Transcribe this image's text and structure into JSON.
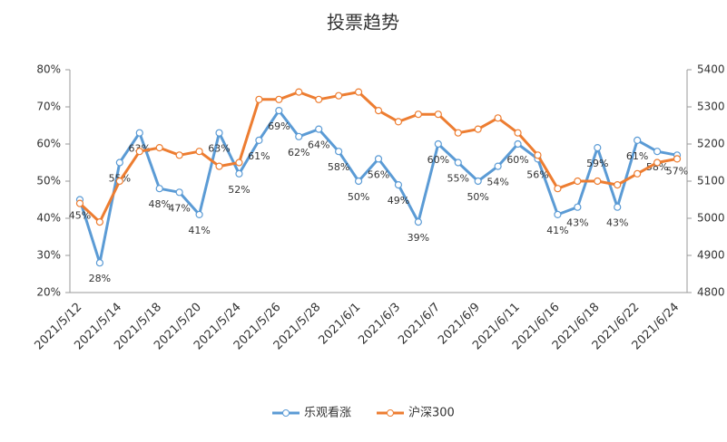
{
  "chart_data": {
    "type": "line",
    "title": "投票趋势",
    "categories": [
      "2021/5/12",
      null,
      "2021/5/14",
      null,
      "2021/5/18",
      null,
      "2021/5/20",
      null,
      "2021/5/24",
      null,
      "2021/5/26",
      null,
      "2021/5/28",
      null,
      "2021/6/1",
      null,
      "2021/6/3",
      null,
      "2021/6/7",
      null,
      "2021/6/9",
      null,
      "2021/6/11",
      null,
      "2021/6/16",
      null,
      "2021/6/18",
      null,
      "2021/6/22",
      null,
      "2021/6/24"
    ],
    "series": [
      {
        "name": "乐观看涨",
        "color": "#5b9bd5",
        "values": [
          45,
          28,
          55,
          63,
          48,
          47,
          41,
          63,
          52,
          61,
          69,
          62,
          64,
          58,
          50,
          56,
          49,
          39,
          60,
          55,
          50,
          54,
          60,
          56,
          41,
          43,
          59,
          43,
          61,
          58,
          57
        ],
        "value_labels": [
          "45%",
          "28%",
          "55%",
          "63%",
          "48%",
          "47%",
          "41%",
          "63%",
          "52%",
          "61%",
          "69%",
          "62%",
          "64%",
          "58%",
          "50%",
          "56%",
          "49%",
          "39%",
          "60%",
          "55%",
          "50%",
          "54%",
          "60%",
          "56%",
          "41%",
          "43%",
          "59%",
          "43%",
          "61%",
          "58%",
          "57%"
        ]
      },
      {
        "name": "沪深300",
        "color": "#ed7d31",
        "axis": "y2",
        "values": [
          5040,
          4990,
          5100,
          5180,
          5190,
          5170,
          5180,
          5140,
          5150,
          5320,
          5320,
          5340,
          5320,
          5330,
          5340,
          5290,
          5260,
          5280,
          5280,
          5230,
          5240,
          5270,
          5230,
          5170,
          5080,
          5100,
          5100,
          5090,
          5120,
          5150,
          5160
        ]
      }
    ],
    "ylim": [
      20,
      80
    ],
    "yticks": [
      {
        "value": 20,
        "label": "20%"
      },
      {
        "value": 30,
        "label": "30%"
      },
      {
        "value": 40,
        "label": "40%"
      },
      {
        "value": 50,
        "label": "50%"
      },
      {
        "value": 60,
        "label": "60%"
      },
      {
        "value": 70,
        "label": "70%"
      },
      {
        "value": 80,
        "label": "80%"
      }
    ],
    "y2lim": [
      4800,
      5400
    ],
    "y2ticks": [
      4800,
      4900,
      5000,
      5100,
      5200,
      5300,
      5400
    ],
    "legend": "bottom"
  }
}
